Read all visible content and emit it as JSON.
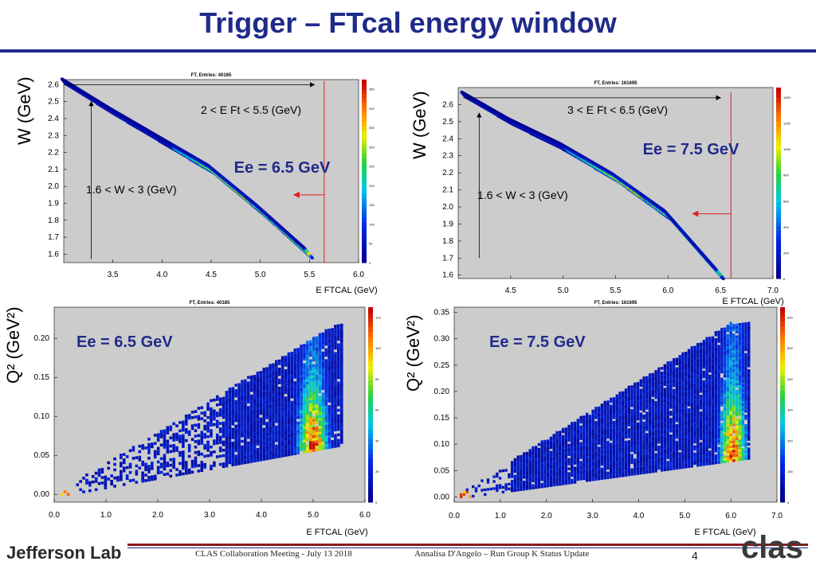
{
  "page": {
    "title": "Trigger – FTcal energy window",
    "footer_meeting": "CLAS Collaboration Meeting - July 13 2018",
    "footer_author": "Annalisa D'Angelo – Run Group K Status Update",
    "page_number": "4",
    "logo_left": "Jefferson Lab",
    "logo_right": "clas"
  },
  "chart_data": [
    {
      "type": "heatmap",
      "title": "FT, Entries: 40185",
      "xlabel": "E FTCAL (GeV)",
      "ylabel": "W (GeV)",
      "xlim": [
        3.0,
        6.0
      ],
      "ylim": [
        1.55,
        2.63
      ],
      "xticks": [
        "3.5",
        "4.0",
        "4.5",
        "5.0",
        "5.5",
        "6.0"
      ],
      "yticks": [
        "1.6",
        "1.7",
        "1.8",
        "1.9",
        "2.0",
        "2.1",
        "2.2",
        "2.3",
        "2.4",
        "2.5",
        "2.6"
      ],
      "zticks": [
        "0",
        "50",
        "100",
        "150",
        "200",
        "250",
        "300",
        "350",
        "400",
        "450"
      ],
      "band": [
        [
          3.0,
          2.62
        ],
        [
          3.5,
          2.44
        ],
        [
          4.0,
          2.27
        ],
        [
          4.5,
          2.1
        ],
        [
          5.0,
          1.86
        ],
        [
          5.5,
          1.6
        ]
      ],
      "annotations": [
        "2 < E Ft < 5.5 (GeV)",
        "1.6 < W < 3 (GeV)",
        "Ee = 6.5 GeV"
      ],
      "cut_x": 5.65
    },
    {
      "type": "heatmap",
      "title": "FT, Entries: 161695",
      "xlabel": "E FTCAL (GeV)",
      "ylabel": "W (GeV)",
      "xlim": [
        4.0,
        7.0
      ],
      "ylim": [
        1.58,
        2.7
      ],
      "xticks": [
        "4.5",
        "5.0",
        "5.5",
        "6.0",
        "6.5",
        "7.0"
      ],
      "yticks": [
        "1.6",
        "1.7",
        "1.8",
        "1.9",
        "2.0",
        "2.1",
        "2.2",
        "2.3",
        "2.4",
        "2.5",
        "2.6"
      ],
      "zticks": [
        "0",
        "200",
        "400",
        "600",
        "800",
        "1000",
        "1200",
        "1400"
      ],
      "band": [
        [
          4.05,
          2.66
        ],
        [
          4.5,
          2.5
        ],
        [
          5.0,
          2.35
        ],
        [
          5.5,
          2.17
        ],
        [
          6.0,
          1.95
        ],
        [
          6.5,
          1.6
        ]
      ],
      "annotations": [
        "3 < E Ft < 6.5 (GeV)",
        "1.6 < W < 3 (GeV)",
        "Ee = 7.5 GeV"
      ],
      "cut_x": 6.6
    },
    {
      "type": "heatmap",
      "title": "FT, Entries: 40185",
      "xlabel": "E FTCAL (GeV)",
      "ylabel": "Q² (GeV²)",
      "xlim": [
        0.0,
        6.0
      ],
      "ylim": [
        -0.01,
        0.24
      ],
      "xticks": [
        "0.0",
        "1.0",
        "2.0",
        "3.0",
        "4.0",
        "5.0",
        "6.0"
      ],
      "yticks": [
        "0.00",
        "0.05",
        "0.10",
        "0.15",
        "0.20"
      ],
      "zticks": [
        "0",
        "20",
        "40",
        "60",
        "80",
        "100",
        "120"
      ],
      "annotations": [
        "Ee = 6.5 GeV"
      ]
    },
    {
      "type": "heatmap",
      "title": "FT, Entries: 161695",
      "xlabel": "E FTCAL (GeV)",
      "ylabel": "Q² (GeV²)",
      "xlim": [
        0.0,
        7.0
      ],
      "ylim": [
        -0.01,
        0.36
      ],
      "xticks": [
        "0.0",
        "1.0",
        "2.0",
        "3.0",
        "4.0",
        "5.0",
        "6.0",
        "7.0"
      ],
      "yticks": [
        "0.00",
        "0.05",
        "0.10",
        "0.15",
        "0.20",
        "0.25",
        "0.30",
        "0.35"
      ],
      "zticks": [
        "0",
        "100",
        "200",
        "300",
        "400",
        "500",
        "600"
      ],
      "annotations": [
        "Ee = 7.5 GeV"
      ]
    }
  ]
}
